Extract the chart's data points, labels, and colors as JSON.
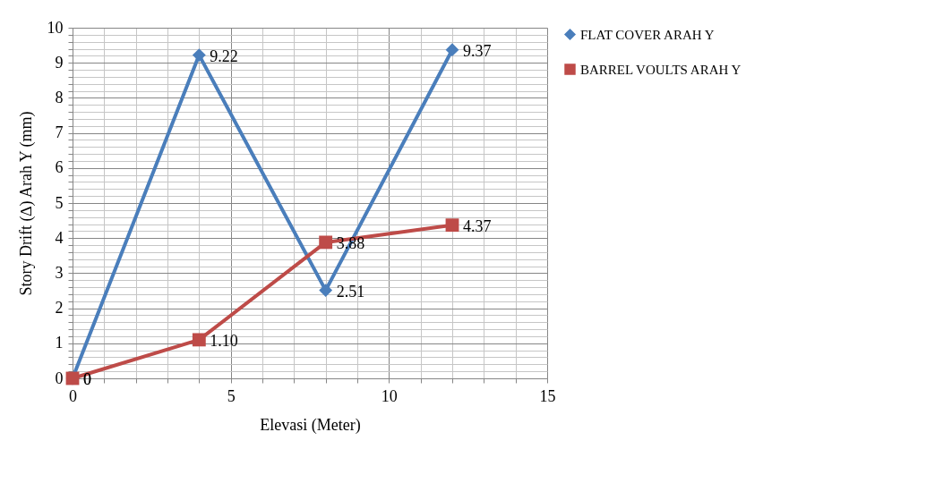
{
  "chart_data": {
    "type": "line",
    "xlabel": "Elevasi (Meter)",
    "ylabel": "Story Drift (∆) Arah Y (mm)",
    "x": [
      0,
      4,
      8,
      12
    ],
    "series": [
      {
        "name": "FLAT COVER ARAH Y",
        "color": "#4a7ebb",
        "marker": "diamond",
        "values": [
          0,
          9.22,
          2.51,
          9.37
        ],
        "value_labels": [
          "0",
          "9.22",
          "2.51",
          "9.37"
        ]
      },
      {
        "name": "BARREL VOULTS ARAH Y",
        "color": "#be4b48",
        "marker": "square",
        "values": [
          0,
          1.1,
          3.88,
          4.37
        ],
        "value_labels": [
          "0",
          "1.10",
          "3.88",
          "4.37"
        ]
      }
    ],
    "xlim": [
      0,
      15
    ],
    "xticks": [
      0,
      {
        "value": 1,
        "label": null
      },
      {
        "value": 2,
        "label": null
      },
      {
        "value": 3,
        "label": null
      },
      {
        "value": 4,
        "label": null
      },
      5,
      {
        "value": 6,
        "label": null
      },
      {
        "value": 7,
        "label": null
      },
      {
        "value": 8,
        "label": null
      },
      {
        "value": 9,
        "label": null
      },
      10,
      {
        "value": 11,
        "label": null
      },
      {
        "value": 12,
        "label": null
      },
      {
        "value": 13,
        "label": null
      },
      {
        "value": 14,
        "label": null
      },
      15
    ],
    "ylim": [
      0,
      10
    ],
    "yticks": [
      0,
      {
        "value": 0.2,
        "label": null
      },
      {
        "value": 0.4,
        "label": null
      },
      {
        "value": 0.6,
        "label": null
      },
      {
        "value": 0.8,
        "label": null
      },
      1,
      {
        "value": 1.2,
        "label": null
      },
      {
        "value": 1.4,
        "label": null
      },
      {
        "value": 1.6,
        "label": null
      },
      {
        "value": 1.8,
        "label": null
      },
      2,
      {
        "value": 2.2,
        "label": null
      },
      {
        "value": 2.4,
        "label": null
      },
      {
        "value": 2.6,
        "label": null
      },
      {
        "value": 2.8,
        "label": null
      },
      3,
      {
        "value": 3.2,
        "label": null
      },
      {
        "value": 3.4,
        "label": null
      },
      {
        "value": 3.6,
        "label": null
      },
      {
        "value": 3.8,
        "label": null
      },
      4,
      {
        "value": 4.2,
        "label": null
      },
      {
        "value": 4.4,
        "label": null
      },
      {
        "value": 4.6,
        "label": null
      },
      {
        "value": 4.8,
        "label": null
      },
      5,
      {
        "value": 5.2,
        "label": null
      },
      {
        "value": 5.4,
        "label": null
      },
      {
        "value": 5.6,
        "label": null
      },
      {
        "value": 5.8,
        "label": null
      },
      6,
      {
        "value": 6.2,
        "label": null
      },
      {
        "value": 6.4,
        "label": null
      },
      {
        "value": 6.6,
        "label": null
      },
      {
        "value": 6.8,
        "label": null
      },
      7,
      {
        "value": 7.2,
        "label": null
      },
      {
        "value": 7.4,
        "label": null
      },
      {
        "value": 7.6,
        "label": null
      },
      {
        "value": 7.8,
        "label": null
      },
      8,
      {
        "value": 8.2,
        "label": null
      },
      {
        "value": 8.4,
        "label": null
      },
      {
        "value": 8.6,
        "label": null
      },
      {
        "value": 8.8,
        "label": null
      },
      9,
      {
        "value": 9.2,
        "label": null
      },
      {
        "value": 9.4,
        "label": null
      },
      {
        "value": 9.6,
        "label": null
      },
      {
        "value": 9.8,
        "label": null
      },
      10
    ],
    "grid": true,
    "legend": "right",
    "line_style": "solid"
  }
}
